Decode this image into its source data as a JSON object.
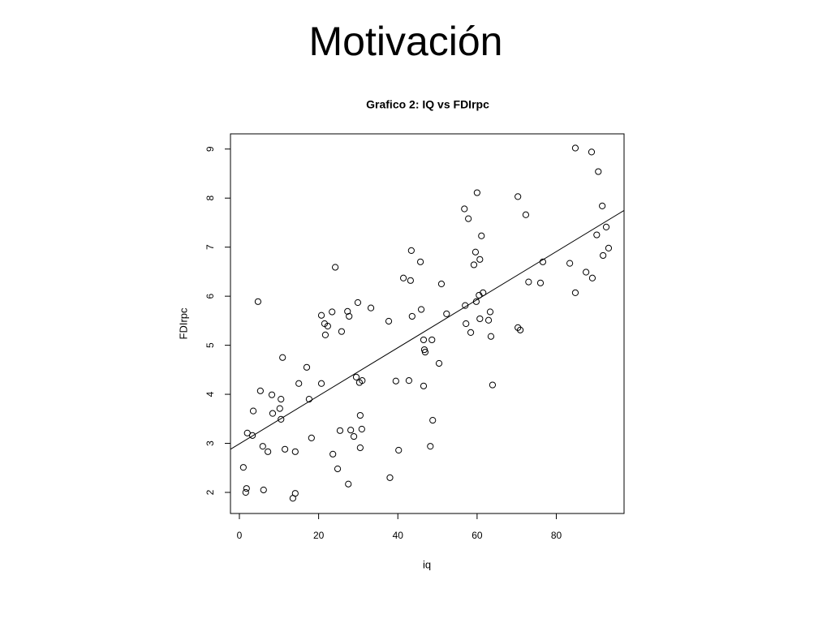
{
  "slide_title": "Motivación",
  "chart_data": {
    "type": "scatter",
    "title": "Grafico 2: IQ vs FDIrpc",
    "x_label": "iq",
    "y_label": "FDIrpc",
    "xlim": [
      -2.25,
      97.1
    ],
    "ylim": [
      1.57,
      9.31
    ],
    "xticks": [
      0,
      20,
      40,
      60,
      80
    ],
    "yticks": [
      2,
      3,
      4,
      5,
      6,
      7,
      8,
      9
    ],
    "color": "#000000",
    "fit": {
      "intercept": 2.99,
      "slope": 0.049
    },
    "series": [
      {
        "name": "FDIrpc",
        "x": [
          84.8,
          88.9,
          90.6,
          60.0,
          70.3,
          56.8,
          91.6,
          57.8,
          72.3,
          92.6,
          61.1,
          90.2,
          93.2,
          59.6,
          43.4,
          60.7,
          45.7,
          76.6,
          83.4,
          91.8,
          59.2,
          24.2,
          87.5,
          89.1,
          41.4,
          43.2,
          73.0,
          76.0,
          51.0,
          61.5,
          60.5,
          84.8,
          4.7,
          29.9,
          33.2,
          59.8,
          57.0,
          45.9,
          23.4,
          27.3,
          20.7,
          27.7,
          52.3,
          63.3,
          43.6,
          60.7,
          62.9,
          37.7,
          21.5,
          22.3,
          57.2,
          70.3,
          70.9,
          25.8,
          58.4,
          21.7,
          63.5,
          46.5,
          48.6,
          46.7,
          46.9,
          10.9,
          50.4,
          17.0,
          29.5,
          31.0,
          30.3,
          39.5,
          42.8,
          15.0,
          20.7,
          46.5,
          63.9,
          5.3,
          8.2,
          10.5,
          17.6,
          3.5,
          10.2,
          8.4,
          30.5,
          10.5,
          48.8,
          2.0,
          3.3,
          25.4,
          28.1,
          30.9,
          28.9,
          18.2,
          5.9,
          7.2,
          11.5,
          14.1,
          30.5,
          40.2,
          48.2,
          23.6,
          1.0,
          24.8,
          38.0,
          27.5,
          1.8,
          1.6,
          6.1,
          14.1,
          13.5
        ],
        "values": [
          9.02,
          8.94,
          8.54,
          8.11,
          8.03,
          7.78,
          7.84,
          7.58,
          7.66,
          7.41,
          7.23,
          7.25,
          6.98,
          6.9,
          6.93,
          6.75,
          6.7,
          6.7,
          6.67,
          6.83,
          6.64,
          6.59,
          6.49,
          6.37,
          6.37,
          6.32,
          6.29,
          6.27,
          6.25,
          6.07,
          6.02,
          6.07,
          5.89,
          5.87,
          5.76,
          5.89,
          5.81,
          5.73,
          5.68,
          5.69,
          5.61,
          5.59,
          5.64,
          5.68,
          5.59,
          5.54,
          5.51,
          5.49,
          5.44,
          5.39,
          5.44,
          5.36,
          5.31,
          5.28,
          5.26,
          5.21,
          5.18,
          5.11,
          5.11,
          4.91,
          4.86,
          4.75,
          4.63,
          4.55,
          4.35,
          4.28,
          4.24,
          4.27,
          4.28,
          4.22,
          4.22,
          4.17,
          4.19,
          4.07,
          3.99,
          3.9,
          3.9,
          3.66,
          3.71,
          3.61,
          3.57,
          3.49,
          3.47,
          3.21,
          3.16,
          3.26,
          3.27,
          3.29,
          3.14,
          3.11,
          2.94,
          2.83,
          2.88,
          2.83,
          2.91,
          2.86,
          2.94,
          2.78,
          2.51,
          2.48,
          2.3,
          2.17,
          2.08,
          2.0,
          2.05,
          1.98,
          1.88
        ]
      }
    ]
  }
}
